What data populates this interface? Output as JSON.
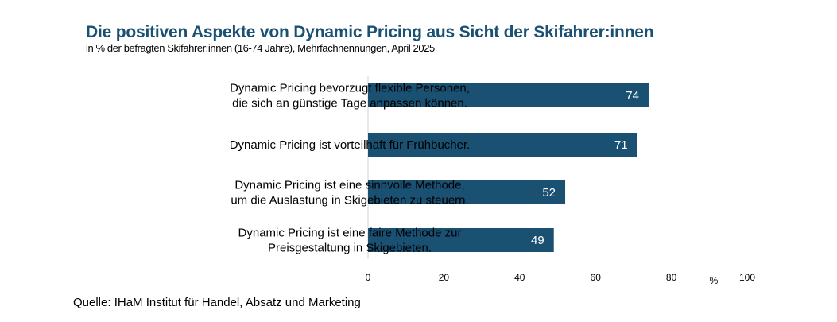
{
  "chart_data": {
    "type": "bar",
    "orientation": "horizontal",
    "title": "Die positiven Aspekte von Dynamic Pricing aus Sicht der Skifahrer:innen",
    "subtitle": "in % der befragten Skifahrer:innen (16-74 Jahre), Mehrfachnennungen, April 2025",
    "categories": [
      [
        "Dynamic Pricing bevorzugt flexible Personen,",
        "die sich an günstige Tage anpassen können."
      ],
      [
        "Dynamic Pricing ist vorteilhaft für Frühbucher."
      ],
      [
        "Dynamic Pricing ist eine sinnvolle Methode,",
        "um die Auslastung in Skigebieten zu steuern."
      ],
      [
        "Dynamic Pricing ist eine faire Methode zur",
        "Preisgestaltung in Skigebieten."
      ]
    ],
    "values": [
      74,
      71,
      52,
      49
    ],
    "xlabel": "%",
    "xlim": [
      0,
      100
    ],
    "xticks": [
      0,
      20,
      40,
      60,
      80,
      100
    ],
    "grid": false,
    "bar_color": "#1a5173",
    "label_color": "#ffffff",
    "source": "Quelle: IHaM Institut für Handel, Absatz und Marketing"
  }
}
